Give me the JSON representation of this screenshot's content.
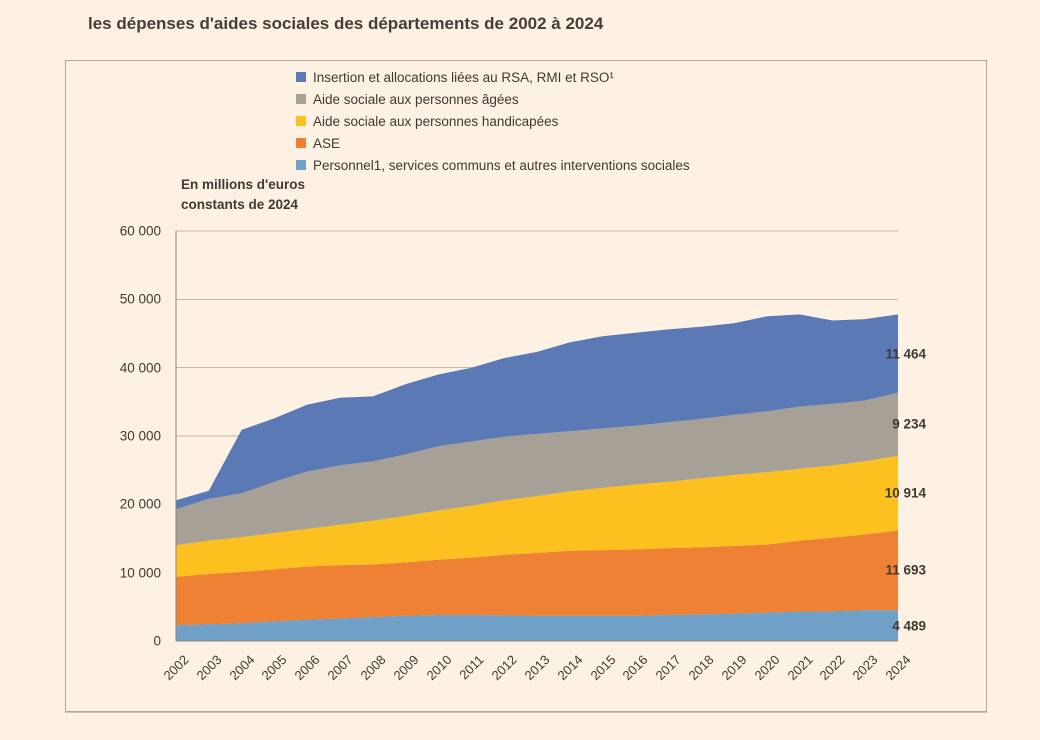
{
  "page": {
    "title": "les dépenses d'aides sociales des départements de 2002 à 2024"
  },
  "colors": {
    "background": "#fcf1e2",
    "box_border": "#b3aa9c",
    "grid": "#c3b9a9",
    "axis": "#8f8779",
    "text": "#3f3a33"
  },
  "axis_label": {
    "line1": "En millions d'euros",
    "line2": "constants de 2024"
  },
  "y_axis": {
    "tick_labels": [
      "0",
      "10 000",
      "20 000",
      "30 000",
      "40 000",
      "50 000",
      "60 000"
    ],
    "min": 0,
    "max": 60000,
    "step": 10000
  },
  "chart_data": {
    "type": "area",
    "stacked": true,
    "title": "les dépenses d'aides sociales des départements de 2002 à 2024",
    "ylabel": "En millions d'euros constants de 2024",
    "ylim": [
      0,
      60000
    ],
    "grid": true,
    "legend_position": "top",
    "x": [
      2002,
      2003,
      2004,
      2005,
      2006,
      2007,
      2008,
      2009,
      2010,
      2011,
      2012,
      2013,
      2014,
      2015,
      2016,
      2017,
      2018,
      2019,
      2020,
      2021,
      2022,
      2023,
      2024
    ],
    "series_bottom_to_top": [
      {
        "name": "Personnel1, services communs et autres interventions sociales",
        "color": "#6fa0c8",
        "end_label": "4 489",
        "values": [
          2300,
          2450,
          2600,
          2900,
          3100,
          3300,
          3500,
          3700,
          3800,
          3800,
          3750,
          3700,
          3700,
          3700,
          3700,
          3800,
          3900,
          4000,
          4150,
          4300,
          4350,
          4500,
          4489
        ]
      },
      {
        "name": "ASE",
        "color": "#ee8133",
        "end_label": "11 693",
        "values": [
          7100,
          7350,
          7500,
          7600,
          7800,
          7800,
          7700,
          7800,
          8100,
          8400,
          8850,
          9200,
          9500,
          9600,
          9700,
          9800,
          9800,
          9900,
          9950,
          10400,
          10750,
          11100,
          11693
        ]
      },
      {
        "name": "Aide sociale aux personnes handicapées",
        "color": "#fcc11e",
        "end_label": "10 914",
        "values": [
          4600,
          4900,
          5100,
          5300,
          5500,
          5900,
          6400,
          6800,
          7200,
          7600,
          8000,
          8300,
          8700,
          9100,
          9500,
          9700,
          10100,
          10400,
          10600,
          10500,
          10600,
          10700,
          10914
        ]
      },
      {
        "name": "Aide sociale aux personnes âgées",
        "color": "#a7a096",
        "end_label": "9 234",
        "values": [
          5300,
          6100,
          6400,
          7500,
          8400,
          8700,
          8700,
          9000,
          9400,
          9400,
          9300,
          9100,
          8800,
          8700,
          8600,
          8700,
          8700,
          8800,
          8900,
          9100,
          9000,
          8900,
          9234
        ]
      },
      {
        "name": "Insertion et allocations liées au RSA, RMI et RSO¹",
        "color": "#5b79b5",
        "end_label": "11 464",
        "values": [
          1300,
          1200,
          9300,
          9300,
          9800,
          9900,
          9500,
          10300,
          10500,
          10800,
          11500,
          12000,
          13000,
          13500,
          13600,
          13600,
          13500,
          13400,
          13900,
          13500,
          12200,
          11900,
          11464
        ]
      }
    ]
  }
}
